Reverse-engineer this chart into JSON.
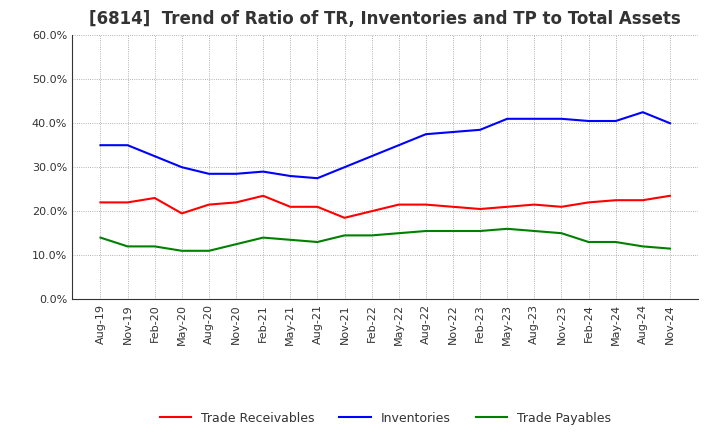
{
  "title": "[6814]  Trend of Ratio of TR, Inventories and TP to Total Assets",
  "labels": [
    "Aug-19",
    "Nov-19",
    "Feb-20",
    "May-20",
    "Aug-20",
    "Nov-20",
    "Feb-21",
    "May-21",
    "Aug-21",
    "Nov-21",
    "Feb-22",
    "May-22",
    "Aug-22",
    "Nov-22",
    "Feb-23",
    "May-23",
    "Aug-23",
    "Nov-23",
    "Feb-24",
    "May-24",
    "Aug-24",
    "Nov-24"
  ],
  "trade_receivables": [
    22.0,
    22.0,
    23.0,
    19.5,
    21.5,
    22.0,
    23.5,
    21.0,
    21.0,
    18.5,
    20.0,
    21.5,
    21.5,
    21.0,
    20.5,
    21.0,
    21.5,
    21.0,
    22.0,
    22.5,
    22.5,
    23.5
  ],
  "inventories": [
    35.0,
    35.0,
    32.5,
    30.0,
    28.5,
    28.5,
    29.0,
    28.0,
    27.5,
    30.0,
    32.5,
    35.0,
    37.5,
    38.0,
    38.5,
    41.0,
    41.0,
    41.0,
    40.5,
    40.5,
    42.5,
    40.0
  ],
  "trade_payables": [
    14.0,
    12.0,
    12.0,
    11.0,
    11.0,
    12.5,
    14.0,
    13.5,
    13.0,
    14.5,
    14.5,
    15.0,
    15.5,
    15.5,
    15.5,
    16.0,
    15.5,
    15.0,
    13.0,
    13.0,
    12.0,
    11.5
  ],
  "ylim": [
    0,
    60
  ],
  "yticks": [
    0,
    10,
    20,
    30,
    40,
    50,
    60
  ],
  "line_colors": {
    "trade_receivables": "#ff0000",
    "inventories": "#0000ff",
    "trade_payables": "#008000"
  },
  "legend_labels": [
    "Trade Receivables",
    "Inventories",
    "Trade Payables"
  ],
  "background_color": "#ffffff",
  "grid_color": "#999999",
  "title_fontsize": 12,
  "tick_fontsize": 8,
  "legend_fontsize": 9
}
